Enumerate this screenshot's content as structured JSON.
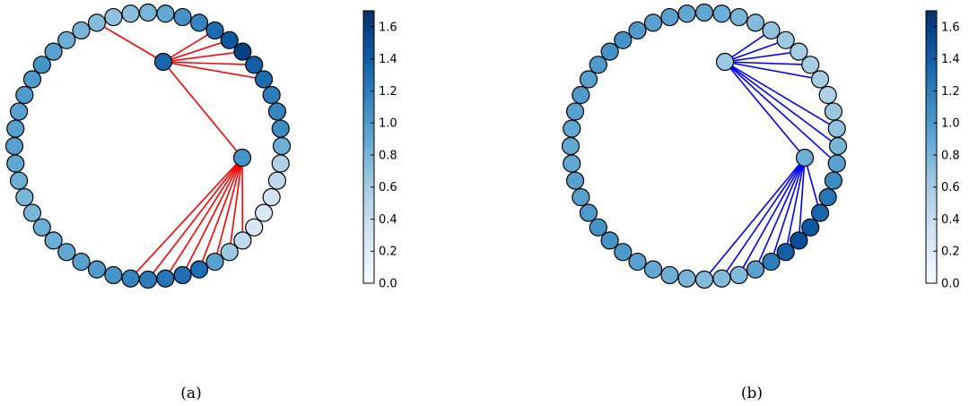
{
  "colorbar": {
    "ticks": [
      "0.0",
      "0.2",
      "0.4",
      "0.6",
      "0.8",
      "1.0",
      "1.2",
      "1.4",
      "1.6"
    ],
    "min": 0.0,
    "max": 1.7,
    "colormap": "Blues"
  },
  "panels": [
    {
      "caption": "(a)",
      "edge_color": "#ff0000",
      "ring_values": [
        1.0,
        1.05,
        0.95,
        0.85,
        0.8,
        0.75,
        0.7,
        0.72,
        0.8,
        0.9,
        1.05,
        1.15,
        1.3,
        1.45,
        1.6,
        1.4,
        1.3,
        1.2,
        1.15,
        1.1,
        0.85,
        0.55,
        0.45,
        0.3,
        0.25,
        0.25,
        0.45,
        0.65,
        0.95,
        1.3,
        1.3,
        1.25,
        1.2,
        1.15,
        1.05,
        1.0,
        0.95,
        0.9,
        0.85,
        0.85,
        0.8,
        0.8,
        0.85,
        0.9,
        0.95,
        0.95,
        0.95,
        1.0
      ],
      "hubs": [
        {
          "value": 1.35,
          "links": [
            12,
            13,
            14,
            15,
            16,
            5
          ]
        },
        {
          "value": 1.05,
          "links": [
            26,
            27,
            28,
            29,
            30,
            31,
            32,
            33
          ]
        }
      ]
    },
    {
      "caption": "(b)",
      "edge_color": "#0000ff",
      "ring_values": [
        0.95,
        1.0,
        1.05,
        1.05,
        1.0,
        0.95,
        0.95,
        0.9,
        0.9,
        0.85,
        0.8,
        0.75,
        0.7,
        0.65,
        0.6,
        0.6,
        0.6,
        0.55,
        0.65,
        0.7,
        0.8,
        0.95,
        1.1,
        1.25,
        1.35,
        1.45,
        1.5,
        1.4,
        1.2,
        0.95,
        0.75,
        0.75,
        0.75,
        0.8,
        0.85,
        0.9,
        0.95,
        1.0,
        1.05,
        1.05,
        1.0,
        0.95,
        0.95,
        0.9,
        0.9,
        0.9,
        0.95,
        1.0
      ],
      "hubs": [
        {
          "value": 0.65,
          "links": [
            12,
            13,
            14,
            15,
            16,
            19,
            20,
            21
          ]
        },
        {
          "value": 0.85,
          "links": [
            24,
            26,
            27,
            28,
            29,
            30,
            31,
            32
          ]
        }
      ]
    }
  ]
}
